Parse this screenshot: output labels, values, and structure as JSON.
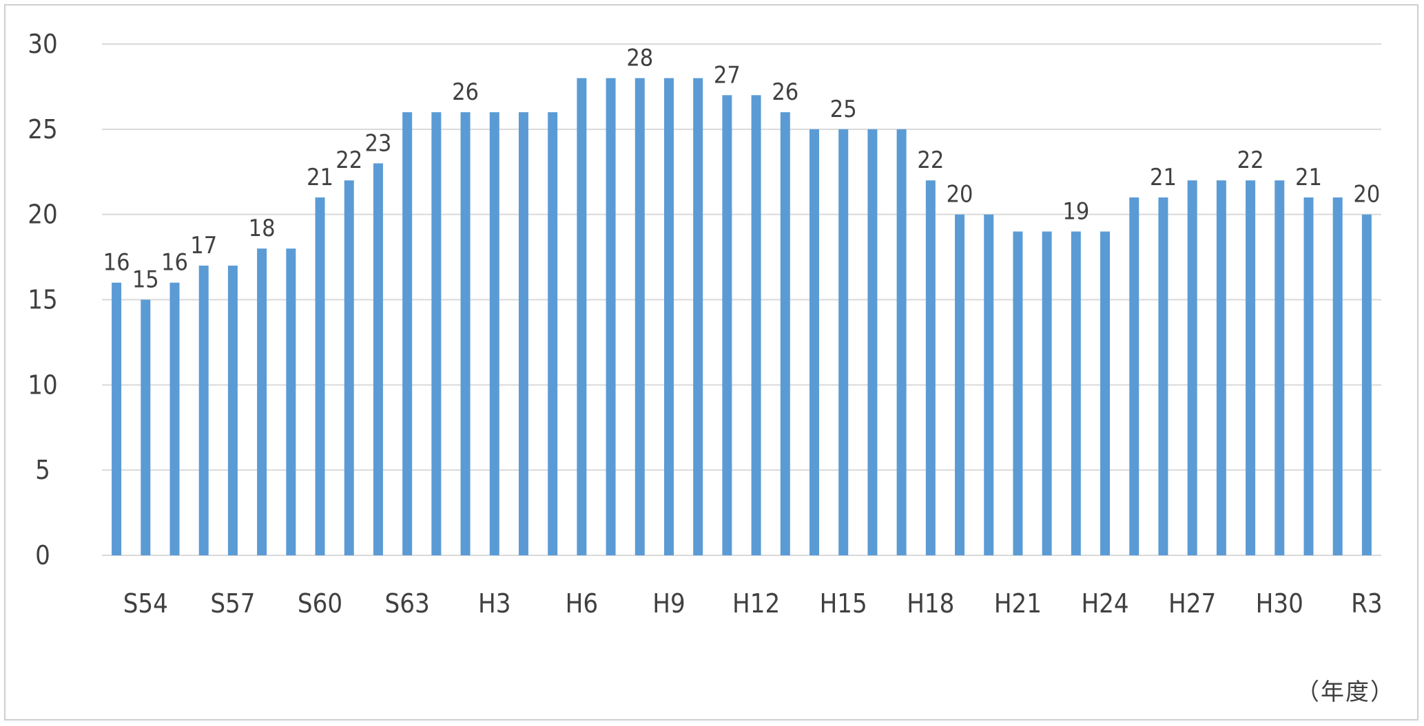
{
  "chart_data": {
    "type": "bar",
    "categories": [
      "S54",
      "S55",
      "S56",
      "S57",
      "S58",
      "S59",
      "S60",
      "S61",
      "S62",
      "S63",
      "H1",
      "H2",
      "H3",
      "H4",
      "H5",
      "H6",
      "H7",
      "H8",
      "H9",
      "H10",
      "H11",
      "H12",
      "H13",
      "H14",
      "H15",
      "H16",
      "H17",
      "H18",
      "H19",
      "H20",
      "H21",
      "H22",
      "H23",
      "H24",
      "H25",
      "H26",
      "H27",
      "H28",
      "H29",
      "H30",
      "R1",
      "R2",
      "R3",
      "R4"
    ],
    "tick_labels": [
      "S54",
      "",
      "",
      "S57",
      "",
      "",
      "S60",
      "",
      "",
      "S63",
      "",
      "",
      "H3",
      "",
      "",
      "H6",
      "",
      "",
      "H9",
      "",
      "",
      "H12",
      "",
      "",
      "H15",
      "",
      "",
      "H18",
      "",
      "",
      "H21",
      "",
      "",
      "H24",
      "",
      "",
      "H27",
      "",
      "",
      "H30",
      "",
      "",
      "R3",
      ""
    ],
    "values": [
      16,
      15,
      16,
      17,
      17,
      18,
      18,
      21,
      22,
      23,
      26,
      26,
      26,
      26,
      26,
      26,
      28,
      28,
      28,
      28,
      28,
      27,
      27,
      26,
      25,
      25,
      25,
      25,
      22,
      20,
      20,
      19,
      19,
      19,
      19,
      21,
      21,
      22,
      22,
      22,
      22,
      21,
      21,
      20
    ],
    "data_labels": [
      "16",
      "15",
      "16",
      "17",
      "",
      "18",
      "",
      "21",
      "22",
      "23",
      "",
      "",
      "26",
      "",
      "",
      "",
      "",
      "",
      "28",
      "",
      "",
      "27",
      "",
      "26",
      "",
      "25",
      "",
      "",
      "22",
      "20",
      "",
      "",
      "",
      "19",
      "",
      "",
      "21",
      "",
      "",
      "22",
      "",
      "21",
      "",
      "20"
    ],
    "ylim": [
      0,
      30
    ],
    "yticks": [
      0,
      5,
      10,
      15,
      20,
      25,
      30
    ],
    "xlabel": "（年度）",
    "ylabel": "",
    "title": "",
    "grid": "horizontal",
    "legend": "none",
    "bar_color": "#5b9bd5",
    "gridline_color": "#d9d9d9",
    "text_color": "#404040"
  }
}
